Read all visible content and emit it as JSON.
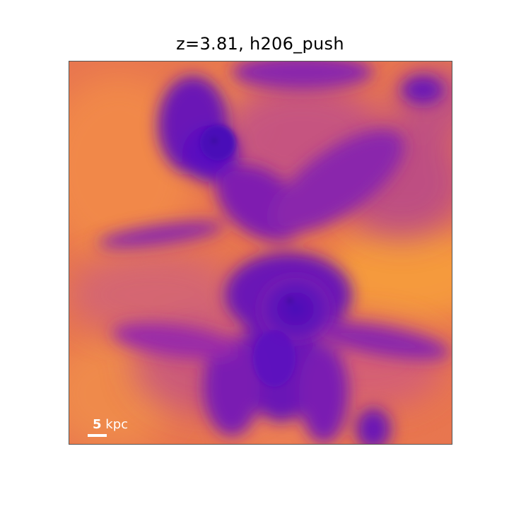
{
  "figure": {
    "title": "z=3.81, h206_push"
  },
  "scalebar": {
    "number": "5",
    "unit": "kpc"
  },
  "colormap": {
    "name": "plasma",
    "background": "#e8764f",
    "dense": "#5a0fc0",
    "mid": "#9a2aa8",
    "warm": "#d95f74",
    "hot": "#f59a3e"
  }
}
